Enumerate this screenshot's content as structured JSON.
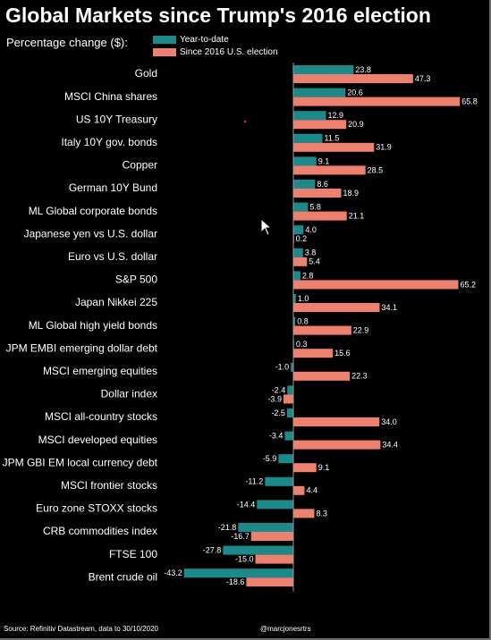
{
  "colors": {
    "background": "#000000",
    "ytd": "#1b8a8a",
    "since": "#f0806e",
    "axis": "#9a9a9a",
    "dot": "#e03020"
  },
  "header": {
    "title": "Global Markets since Trump's 2016 election",
    "subtitle": "Percentage change ($):"
  },
  "legend": {
    "ytd_label": "Year-to-date",
    "since_label": "Since 2016 U.S. election"
  },
  "footer": {
    "source": "Source: Refinitiv Datastream, data to 30/10/2020",
    "handle": "@marcjonesrtrs"
  },
  "chart_data": {
    "type": "bar",
    "orientation": "horizontal",
    "title": "Global Markets since Trump's 2016 election",
    "subtitle": "Percentage change ($):",
    "categories": [
      "Gold",
      "MSCI China shares",
      "US 10Y Treasury",
      "Italy 10Y gov. bonds",
      "Copper",
      "German 10Y Bund",
      "ML Global corporate bonds",
      "Japanese yen vs U.S. dollar",
      "Euro vs U.S. dollar",
      "S&P 500",
      "Japan Nikkei 225",
      "ML Global high yield bonds",
      "JPM EMBI emerging dollar debt",
      "MSCI emerging equities",
      "Dollar index",
      "MSCI all-country stocks",
      "MSCI developed equities",
      "JPM GBI EM local currency debt",
      "MSCI frontier stocks",
      "Euro zone STOXX stocks",
      "CRB commodities index",
      "FTSE 100",
      "Brent crude oil"
    ],
    "series": [
      {
        "name": "Year-to-date",
        "values": [
          23.8,
          20.6,
          12.9,
          11.5,
          9.1,
          8.6,
          5.8,
          4.0,
          3.8,
          2.8,
          1.0,
          0.8,
          0.3,
          -1.0,
          -2.4,
          -2.5,
          -3.4,
          -5.9,
          -11.2,
          -14.4,
          -21.8,
          -27.8,
          -43.2
        ]
      },
      {
        "name": "Since 2016 U.S. election",
        "values": [
          47.3,
          65.8,
          20.9,
          31.9,
          28.5,
          18.9,
          21.1,
          0.2,
          5.4,
          65.2,
          34.1,
          22.9,
          15.6,
          22.3,
          -3.9,
          34.0,
          34.4,
          9.1,
          4.4,
          8.3,
          -16.7,
          -15.0,
          -18.6
        ]
      }
    ],
    "legend_position": "top-left",
    "grid": false
  }
}
